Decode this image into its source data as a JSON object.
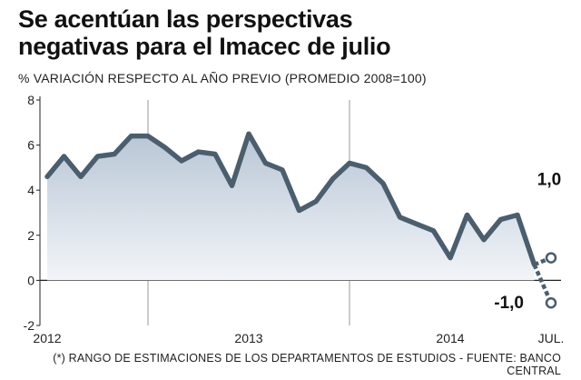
{
  "header": {
    "title_line1": "Se acentúan las perspectivas",
    "title_line2": "negativas para el Imacec de julio",
    "subtitle": "% VARIACIÓN RESPECTO AL AÑO PREVIO (PROMEDIO 2008=100)"
  },
  "footnote": "(*) RANGO DE ESTIMACIONES DE LOS DEPARTAMENTOS DE ESTUDIOS - FUENTE: BANCO CENTRAL",
  "colors": {
    "line": "#4a5e6e",
    "fill_top": "#b9c6d6",
    "fill_bottom": "#f2f5f8",
    "grid": "#9a9a9a",
    "zero": "#222222"
  },
  "chart_data": {
    "type": "area",
    "title": "Se acentúan las perspectivas negativas para el Imacec de julio",
    "ylabel": "% VARIACIÓN RESPECTO AL AÑO PREVIO (PROMEDIO 2008=100)",
    "ylim": [
      -2,
      8
    ],
    "yticks": [
      8,
      6,
      4,
      2,
      0,
      -2
    ],
    "x_tick_labels": [
      {
        "label": "2012",
        "index": 0
      },
      {
        "label": "2013",
        "index": 12
      },
      {
        "label": "2014",
        "index": 24
      },
      {
        "label": "JUL.",
        "index": 30
      }
    ],
    "year_dividers": [
      6,
      18
    ],
    "series": [
      {
        "name": "Imacec",
        "x": [
          "2012-01",
          "2012-02",
          "2012-03",
          "2012-04",
          "2012-05",
          "2012-06",
          "2012-07",
          "2012-08",
          "2012-09",
          "2012-10",
          "2012-11",
          "2012-12",
          "2013-01",
          "2013-02",
          "2013-03",
          "2013-04",
          "2013-05",
          "2013-06",
          "2013-07",
          "2013-08",
          "2013-09",
          "2013-10",
          "2013-11",
          "2013-12",
          "2014-01",
          "2014-02",
          "2014-03",
          "2014-04",
          "2014-05",
          "2014-06"
        ],
        "values": [
          4.6,
          5.5,
          4.6,
          5.5,
          5.6,
          6.4,
          6.4,
          5.9,
          5.3,
          5.7,
          5.6,
          4.2,
          6.5,
          5.2,
          4.9,
          3.1,
          3.5,
          4.5,
          5.2,
          5.0,
          4.3,
          2.8,
          2.5,
          2.2,
          1.0,
          2.9,
          1.8,
          2.7,
          2.9,
          0.7
        ]
      }
    ],
    "estimate_range": {
      "name": "Rango de estimaciones (*)",
      "x": "2014-07",
      "high": 1.0,
      "low": -1.0,
      "high_label": "1,0",
      "low_label": "-1,0"
    }
  }
}
